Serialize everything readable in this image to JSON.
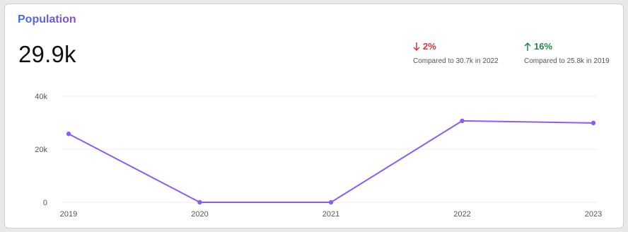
{
  "header": {
    "title": "Population",
    "value": "29.9k"
  },
  "comparisons": [
    {
      "direction": "down",
      "delta": "2%",
      "caption": "Compared to 30.7k in 2022",
      "color": "#d93434"
    },
    {
      "direction": "up",
      "delta": "16%",
      "caption": "Compared to 25.8k in 2019",
      "color": "#23874a"
    }
  ],
  "chart_data": {
    "type": "line",
    "title": "Population",
    "categories": [
      "2019",
      "2020",
      "2021",
      "2022",
      "2023"
    ],
    "series": [
      {
        "values": [
          25800,
          0,
          0,
          30700,
          29900
        ],
        "color": "#8b5cf6"
      }
    ],
    "ylim": [
      0,
      40000
    ],
    "yticks": [
      0,
      20000,
      40000
    ],
    "ytick_labels": [
      "0",
      "20k",
      "40k"
    ],
    "grid": true
  }
}
